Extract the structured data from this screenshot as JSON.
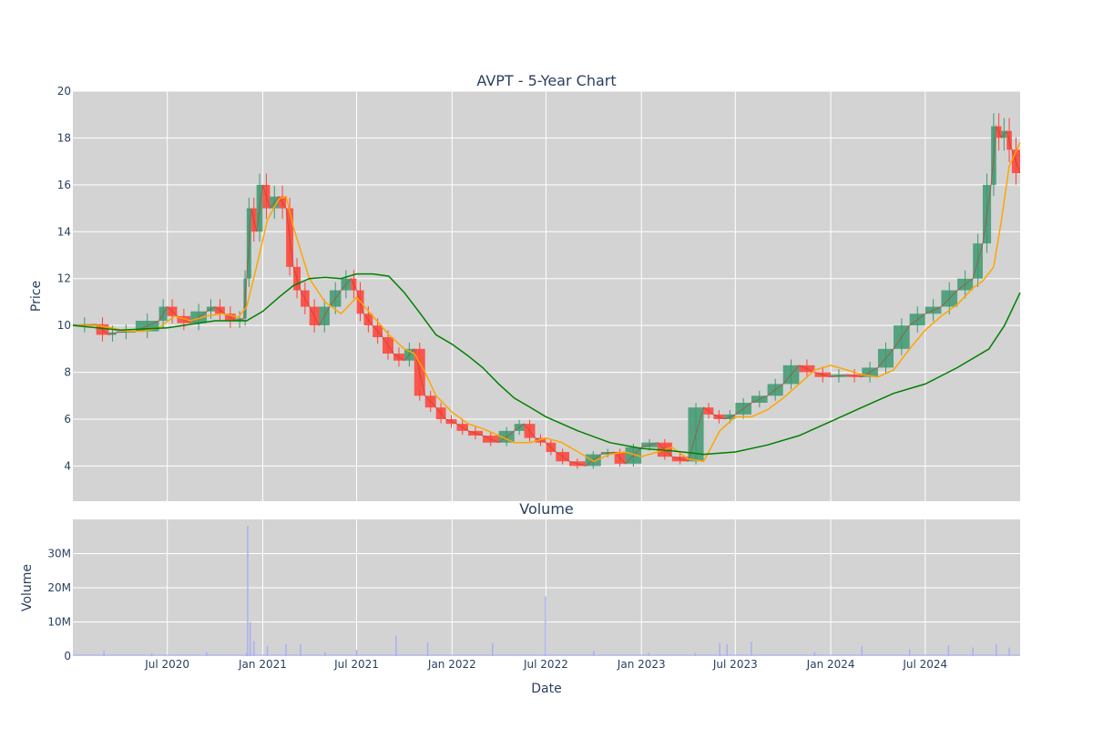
{
  "chart_data": [
    {
      "type": "candlestick",
      "title": "AVPT - 5-Year Chart",
      "ylabel": "Price",
      "ylim": [
        2.5,
        20
      ],
      "yticks": [
        4,
        6,
        8,
        10,
        12,
        14,
        16,
        18,
        20
      ],
      "xlim": [
        "2020-01-01",
        "2024-12-31"
      ],
      "background": "#d3d3d3",
      "grid": true,
      "colors": {
        "increasing": "#3d9970",
        "decreasing": "#ff4136",
        "ma_short": "#ffa500",
        "ma_long": "#008000"
      },
      "series": [
        {
          "kind": "close",
          "x": [
            "2020-01-01",
            "2020-02-15",
            "2020-03-10",
            "2020-03-25",
            "2020-05-01",
            "2020-06-15",
            "2020-07-01",
            "2020-07-20",
            "2020-08-15",
            "2020-09-15",
            "2020-10-01",
            "2020-10-20",
            "2020-11-10",
            "2020-11-25",
            "2020-12-01",
            "2020-12-10",
            "2020-12-20",
            "2021-01-01",
            "2021-01-15",
            "2021-02-01",
            "2021-02-15",
            "2021-03-01",
            "2021-03-15",
            "2021-04-01",
            "2021-04-20",
            "2021-05-10",
            "2021-06-01",
            "2021-06-20",
            "2021-07-01",
            "2021-07-15",
            "2021-08-01",
            "2021-08-20",
            "2021-09-10",
            "2021-10-01",
            "2021-10-20",
            "2021-11-10",
            "2021-12-01",
            "2021-12-20",
            "2022-01-10",
            "2022-02-01",
            "2022-03-01",
            "2022-04-01",
            "2022-05-01",
            "2022-05-20",
            "2022-06-10",
            "2022-07-01",
            "2022-07-20",
            "2022-08-15",
            "2022-09-15",
            "2022-10-15",
            "2022-11-10",
            "2022-12-01",
            "2023-01-01",
            "2023-02-01",
            "2023-03-01",
            "2023-04-01",
            "2023-05-01",
            "2023-05-20",
            "2023-06-10",
            "2023-07-01",
            "2023-08-01",
            "2023-09-01",
            "2023-10-01",
            "2023-11-01",
            "2023-12-01",
            "2024-01-01",
            "2024-02-01",
            "2024-03-01",
            "2024-04-01",
            "2024-05-01",
            "2024-06-01",
            "2024-07-01",
            "2024-08-01",
            "2024-09-01",
            "2024-10-01",
            "2024-10-20",
            "2024-11-05",
            "2024-11-15",
            "2024-11-25",
            "2024-12-05",
            "2024-12-15",
            "2024-12-31"
          ],
          "y": [
            10.0,
            10.05,
            9.6,
            9.7,
            9.75,
            10.2,
            10.8,
            10.4,
            10.1,
            10.6,
            10.8,
            10.5,
            10.2,
            10.3,
            12.0,
            15.0,
            14.0,
            16.0,
            15.0,
            15.5,
            15.0,
            12.5,
            11.5,
            10.8,
            10.0,
            10.8,
            11.5,
            12.0,
            11.5,
            10.5,
            10.0,
            9.5,
            8.8,
            8.5,
            9.0,
            7.0,
            6.5,
            6.0,
            5.8,
            5.5,
            5.3,
            5.0,
            5.5,
            5.8,
            5.2,
            5.0,
            4.6,
            4.2,
            4.0,
            4.5,
            4.6,
            4.1,
            4.8,
            5.0,
            4.4,
            4.2,
            6.5,
            6.2,
            6.0,
            6.2,
            6.7,
            7.0,
            7.5,
            8.3,
            8.0,
            7.8,
            7.9,
            7.8,
            8.2,
            9.0,
            10.0,
            10.5,
            10.8,
            11.5,
            12.0,
            13.5,
            16.0,
            18.5,
            18.0,
            18.3,
            17.5,
            16.5
          ]
        },
        {
          "kind": "ma_short",
          "x": [
            "2020-01-01",
            "2020-02-15",
            "2020-03-15",
            "2020-04-15",
            "2020-05-15",
            "2020-06-15",
            "2020-07-15",
            "2020-08-15",
            "2020-09-15",
            "2020-10-15",
            "2020-11-15",
            "2020-12-01",
            "2020-12-20",
            "2021-01-10",
            "2021-02-01",
            "2021-02-15",
            "2021-03-01",
            "2021-03-15",
            "2021-04-01",
            "2021-05-01",
            "2021-06-01",
            "2021-07-01",
            "2021-08-01",
            "2021-09-01",
            "2021-10-01",
            "2021-10-20",
            "2021-11-10",
            "2021-12-01",
            "2022-01-01",
            "2022-02-01",
            "2022-03-01",
            "2022-04-01",
            "2022-05-01",
            "2022-06-01",
            "2022-07-01",
            "2022-08-01",
            "2022-09-01",
            "2022-10-01",
            "2022-11-01",
            "2022-12-01",
            "2023-01-01",
            "2023-02-01",
            "2023-03-01",
            "2023-04-01",
            "2023-05-01",
            "2023-06-01",
            "2023-07-01",
            "2023-08-01",
            "2023-09-01",
            "2023-10-01",
            "2023-11-01",
            "2023-12-01",
            "2024-01-01",
            "2024-02-01",
            "2024-03-01",
            "2024-04-01",
            "2024-05-01",
            "2024-06-01",
            "2024-07-01",
            "2024-08-01",
            "2024-09-01",
            "2024-10-01",
            "2024-10-20",
            "2024-11-10",
            "2024-11-25",
            "2024-12-10",
            "2024-12-31"
          ],
          "y": [
            10.0,
            10.0,
            9.9,
            9.75,
            9.75,
            9.9,
            10.4,
            10.2,
            10.4,
            10.5,
            10.35,
            10.8,
            12.5,
            14.5,
            15.4,
            15.5,
            14.2,
            13.2,
            12.0,
            11.0,
            10.5,
            11.2,
            10.4,
            9.6,
            9.0,
            8.8,
            8.0,
            7.0,
            6.3,
            5.8,
            5.6,
            5.3,
            5.0,
            5.0,
            5.2,
            5.0,
            4.6,
            4.2,
            4.5,
            4.6,
            4.4,
            4.6,
            4.8,
            4.3,
            4.2,
            5.5,
            6.1,
            6.1,
            6.4,
            6.9,
            7.5,
            8.1,
            8.3,
            8.1,
            7.9,
            7.8,
            8.1,
            9.0,
            9.8,
            10.4,
            10.9,
            11.6,
            11.9,
            12.5,
            14.5,
            16.8,
            17.8
          ]
        },
        {
          "kind": "ma_long",
          "x": [
            "2020-01-01",
            "2020-04-01",
            "2020-07-01",
            "2020-10-01",
            "2020-12-01",
            "2021-01-01",
            "2021-02-01",
            "2021-03-01",
            "2021-04-01",
            "2021-05-01",
            "2021-06-01",
            "2021-07-01",
            "2021-08-01",
            "2021-09-01",
            "2021-10-01",
            "2021-11-01",
            "2021-12-01",
            "2022-01-01",
            "2022-02-01",
            "2022-03-01",
            "2022-04-01",
            "2022-05-01",
            "2022-06-01",
            "2022-07-01",
            "2022-09-01",
            "2022-11-01",
            "2023-01-01",
            "2023-03-01",
            "2023-05-01",
            "2023-07-01",
            "2023-09-01",
            "2023-11-01",
            "2024-01-01",
            "2024-03-01",
            "2024-05-01",
            "2024-07-01",
            "2024-09-01",
            "2024-11-01",
            "2024-12-01",
            "2024-12-31"
          ],
          "y": [
            10.0,
            9.8,
            9.9,
            10.2,
            10.2,
            10.6,
            11.2,
            11.7,
            12.0,
            12.05,
            12.0,
            12.2,
            12.2,
            12.1,
            11.4,
            10.5,
            9.6,
            9.2,
            8.7,
            8.2,
            7.5,
            6.9,
            6.5,
            6.1,
            5.5,
            5.0,
            4.75,
            4.65,
            4.5,
            4.6,
            4.9,
            5.3,
            5.9,
            6.5,
            7.1,
            7.5,
            8.2,
            9.0,
            10.0,
            11.4
          ]
        }
      ]
    },
    {
      "type": "bar",
      "title": "Volume",
      "xlabel": "Date",
      "ylabel": "Volume",
      "ylim": [
        0,
        40000000
      ],
      "yticks": [
        0,
        10000000,
        20000000,
        30000000
      ],
      "ytick_labels": [
        "0",
        "10M",
        "20M",
        "30M"
      ],
      "xtick_values": [
        "2020-07-01",
        "2021-01-01",
        "2021-07-01",
        "2022-01-01",
        "2022-07-01",
        "2023-01-01",
        "2023-07-01",
        "2024-01-01",
        "2024-07-01"
      ],
      "xtick_labels": [
        "Jul 2020",
        "Jan 2021",
        "Jul 2021",
        "Jan 2022",
        "Jul 2022",
        "Jan 2023",
        "Jul 2023",
        "Jan 2024",
        "Jul 2024"
      ],
      "bar_color": "#aab0f0",
      "x": [
        "2020-03-01",
        "2020-06-01",
        "2020-09-15",
        "2020-12-01",
        "2020-12-03",
        "2020-12-08",
        "2020-12-15",
        "2021-01-10",
        "2021-02-15",
        "2021-03-15",
        "2021-05-01",
        "2021-07-01",
        "2021-09-15",
        "2021-11-15",
        "2022-03-20",
        "2022-06-30",
        "2022-10-01",
        "2023-01-15",
        "2023-04-15",
        "2023-06-01",
        "2023-06-15",
        "2023-08-01",
        "2023-12-01",
        "2024-03-01",
        "2024-06-01",
        "2024-08-15",
        "2024-10-01",
        "2024-11-15",
        "2024-12-10"
      ],
      "values": [
        1500000,
        800000,
        1200000,
        1000000,
        38000000,
        10000000,
        4500000,
        3000000,
        3500000,
        3500000,
        1200000,
        1800000,
        6000000,
        4000000,
        3800000,
        17500000,
        1500000,
        1000000,
        900000,
        3800000,
        3500000,
        4200000,
        1200000,
        3000000,
        2000000,
        3200000,
        2500000,
        3500000,
        2500000
      ]
    }
  ]
}
